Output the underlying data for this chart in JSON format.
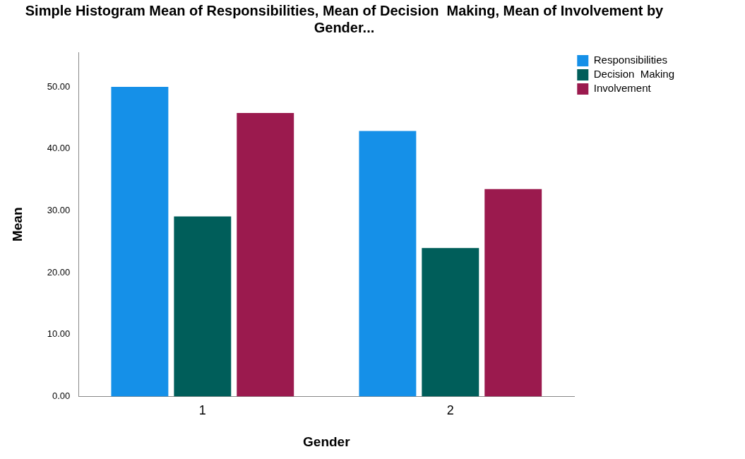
{
  "chart_data": {
    "type": "bar",
    "title": "Simple Histogram Mean of Responsibilities, Mean of Decision  Making, Mean of Involvement by Gender...",
    "xlabel": "Gender",
    "ylabel": "Mean",
    "categories": [
      "1",
      "2"
    ],
    "series": [
      {
        "name": "Responsibilities",
        "color": "#1590e8",
        "values": [
          50.0,
          42.9
        ]
      },
      {
        "name": "Decision  Making",
        "color": "#005e5a",
        "values": [
          29.1,
          24.0
        ]
      },
      {
        "name": "Involvement",
        "color": "#9b1a4e",
        "values": [
          45.8,
          33.5
        ]
      }
    ],
    "ylim": [
      0,
      55.6
    ],
    "yticks": [
      {
        "value": 0,
        "label": "0.00"
      },
      {
        "value": 10,
        "label": "10.00"
      },
      {
        "value": 20,
        "label": "20.00"
      },
      {
        "value": 30,
        "label": "30.00"
      },
      {
        "value": 40,
        "label": "40.00"
      },
      {
        "value": 50,
        "label": "50.00"
      }
    ],
    "grid": false,
    "legend": "top right"
  }
}
